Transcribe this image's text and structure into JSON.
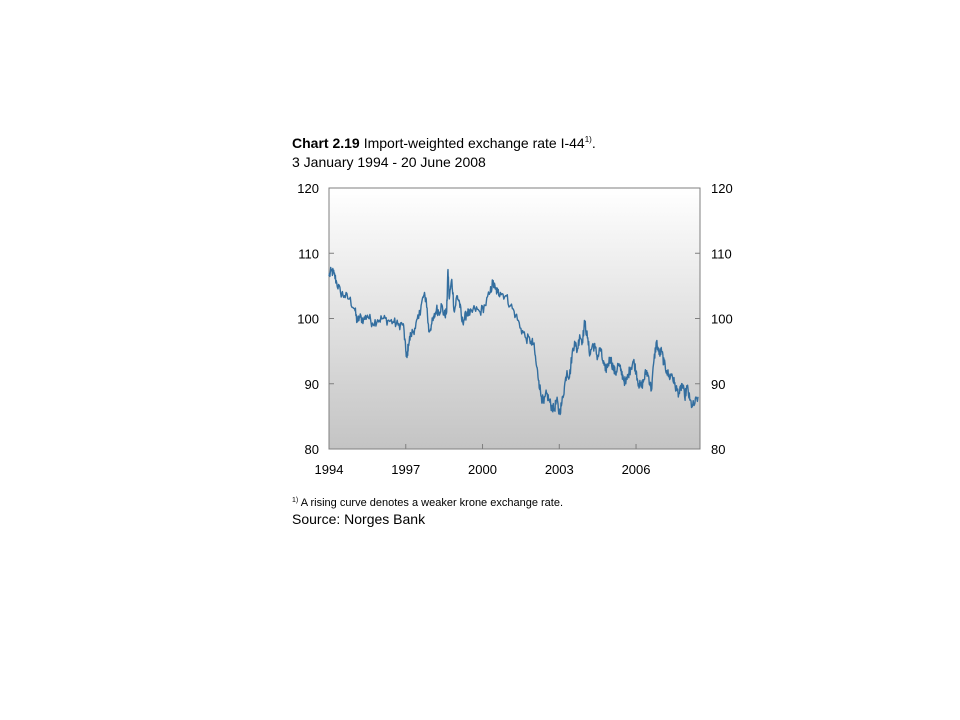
{
  "header": {
    "chart_number": "Chart 2.19",
    "title_text": "Import-weighted exchange rate I-44",
    "title_footnote_mark": "1)",
    "title_end": ".",
    "subtitle": "3 January 1994 - 20 June 2008"
  },
  "footer": {
    "footnote_mark": "1)",
    "footnote_text": "A rising curve denotes a weaker  krone  exchange rate.",
    "source": "Source: Norges Bank"
  },
  "colors": {
    "line": "#336e9f",
    "plot_gradient_top": "#ffffff",
    "plot_gradient_bottom": "#c4c4c4",
    "axis": "#7f7f7f"
  },
  "chart_data": {
    "type": "line",
    "title": "Import-weighted exchange rate I-44",
    "subtitle": "3 January 1994 - 20 June 2008",
    "xlabel": "",
    "ylabel": "",
    "xlim": [
      1994.0,
      2008.5
    ],
    "ylim": [
      80,
      120
    ],
    "x_ticks": [
      1994,
      1997,
      2000,
      2003,
      2006
    ],
    "y_ticks": [
      80,
      90,
      100,
      110,
      120
    ],
    "y_axis_left_labels": [
      "80",
      "90",
      "100",
      "110",
      "120"
    ],
    "y_axis_right_labels": [
      "80",
      "90",
      "100",
      "110",
      "120"
    ],
    "x_tick_labels": [
      "1994",
      "1997",
      "2000",
      "2003",
      "2006"
    ],
    "grid": false,
    "series": [
      {
        "x": [
          1994.0,
          1994.1,
          1994.2,
          1994.3,
          1994.45,
          1994.6,
          1994.8,
          1995.0,
          1995.1,
          1995.2,
          1995.35,
          1995.5,
          1995.7,
          1995.9,
          1996.1,
          1996.3,
          1996.5,
          1996.7,
          1996.9,
          1997.0,
          1997.05,
          1997.1,
          1997.2,
          1997.35,
          1997.5,
          1997.6,
          1997.7,
          1997.8,
          1997.9,
          1998.0,
          1998.1,
          1998.2,
          1998.3,
          1998.4,
          1998.5,
          1998.6,
          1998.65,
          1998.7,
          1998.8,
          1998.9,
          1999.0,
          1999.1,
          1999.2,
          1999.3,
          1999.4,
          1999.5,
          1999.7,
          1999.9,
          2000.1,
          2000.3,
          2000.4,
          2000.5,
          2000.6,
          2000.7,
          2000.9,
          2001.1,
          2001.3,
          2001.5,
          2001.7,
          2001.9,
          2002.0,
          2002.1,
          2002.2,
          2002.3,
          2002.4,
          2002.5,
          2002.6,
          2002.7,
          2002.8,
          2002.9,
          2003.0,
          2003.1,
          2003.2,
          2003.3,
          2003.4,
          2003.5,
          2003.6,
          2003.7,
          2003.8,
          2003.9,
          2004.0,
          2004.1,
          2004.2,
          2004.3,
          2004.4,
          2004.5,
          2004.6,
          2004.7,
          2004.8,
          2004.9,
          2005.0,
          2005.1,
          2005.2,
          2005.3,
          2005.4,
          2005.5,
          2005.6,
          2005.7,
          2005.8,
          2005.9,
          2006.0,
          2006.1,
          2006.2,
          2006.3,
          2006.4,
          2006.5,
          2006.6,
          2006.7,
          2006.8,
          2006.9,
          2007.0,
          2007.1,
          2007.2,
          2007.3,
          2007.4,
          2007.5,
          2007.6,
          2007.7,
          2007.8,
          2007.9,
          2008.0,
          2008.1,
          2008.2,
          2008.3,
          2008.42
        ],
        "values": [
          106.5,
          107.3,
          106.8,
          105.5,
          104.0,
          103.5,
          103.0,
          101.5,
          99.5,
          100.2,
          99.8,
          100.5,
          99.3,
          99.8,
          100.0,
          99.7,
          99.5,
          99.0,
          99.2,
          95.0,
          94.0,
          96.0,
          97.5,
          98.5,
          100.0,
          102.0,
          103.5,
          103.0,
          98.0,
          99.0,
          100.0,
          101.5,
          101.0,
          102.0,
          100.5,
          101.0,
          107.5,
          103.0,
          106.0,
          101.0,
          103.5,
          102.5,
          99.5,
          100.0,
          101.0,
          100.5,
          101.5,
          101.0,
          102.0,
          104.0,
          105.5,
          104.5,
          104.0,
          104.0,
          103.5,
          102.0,
          100.5,
          98.5,
          97.0,
          96.5,
          96.0,
          93.0,
          90.5,
          88.0,
          87.0,
          88.5,
          87.5,
          86.5,
          86.0,
          87.5,
          85.5,
          87.0,
          89.5,
          92.0,
          91.0,
          94.5,
          96.5,
          95.0,
          97.5,
          96.5,
          99.5,
          97.0,
          94.5,
          96.0,
          95.5,
          94.0,
          95.5,
          93.5,
          92.0,
          93.0,
          94.0,
          92.5,
          91.5,
          93.0,
          92.0,
          91.0,
          90.0,
          91.5,
          92.5,
          93.5,
          92.0,
          90.0,
          89.5,
          90.5,
          92.0,
          91.0,
          89.0,
          93.5,
          96.5,
          94.5,
          95.0,
          93.0,
          92.0,
          91.0,
          91.5,
          90.0,
          89.0,
          88.5,
          90.0,
          88.0,
          89.5,
          87.5,
          86.5,
          87.0,
          88.0
        ]
      }
    ]
  }
}
